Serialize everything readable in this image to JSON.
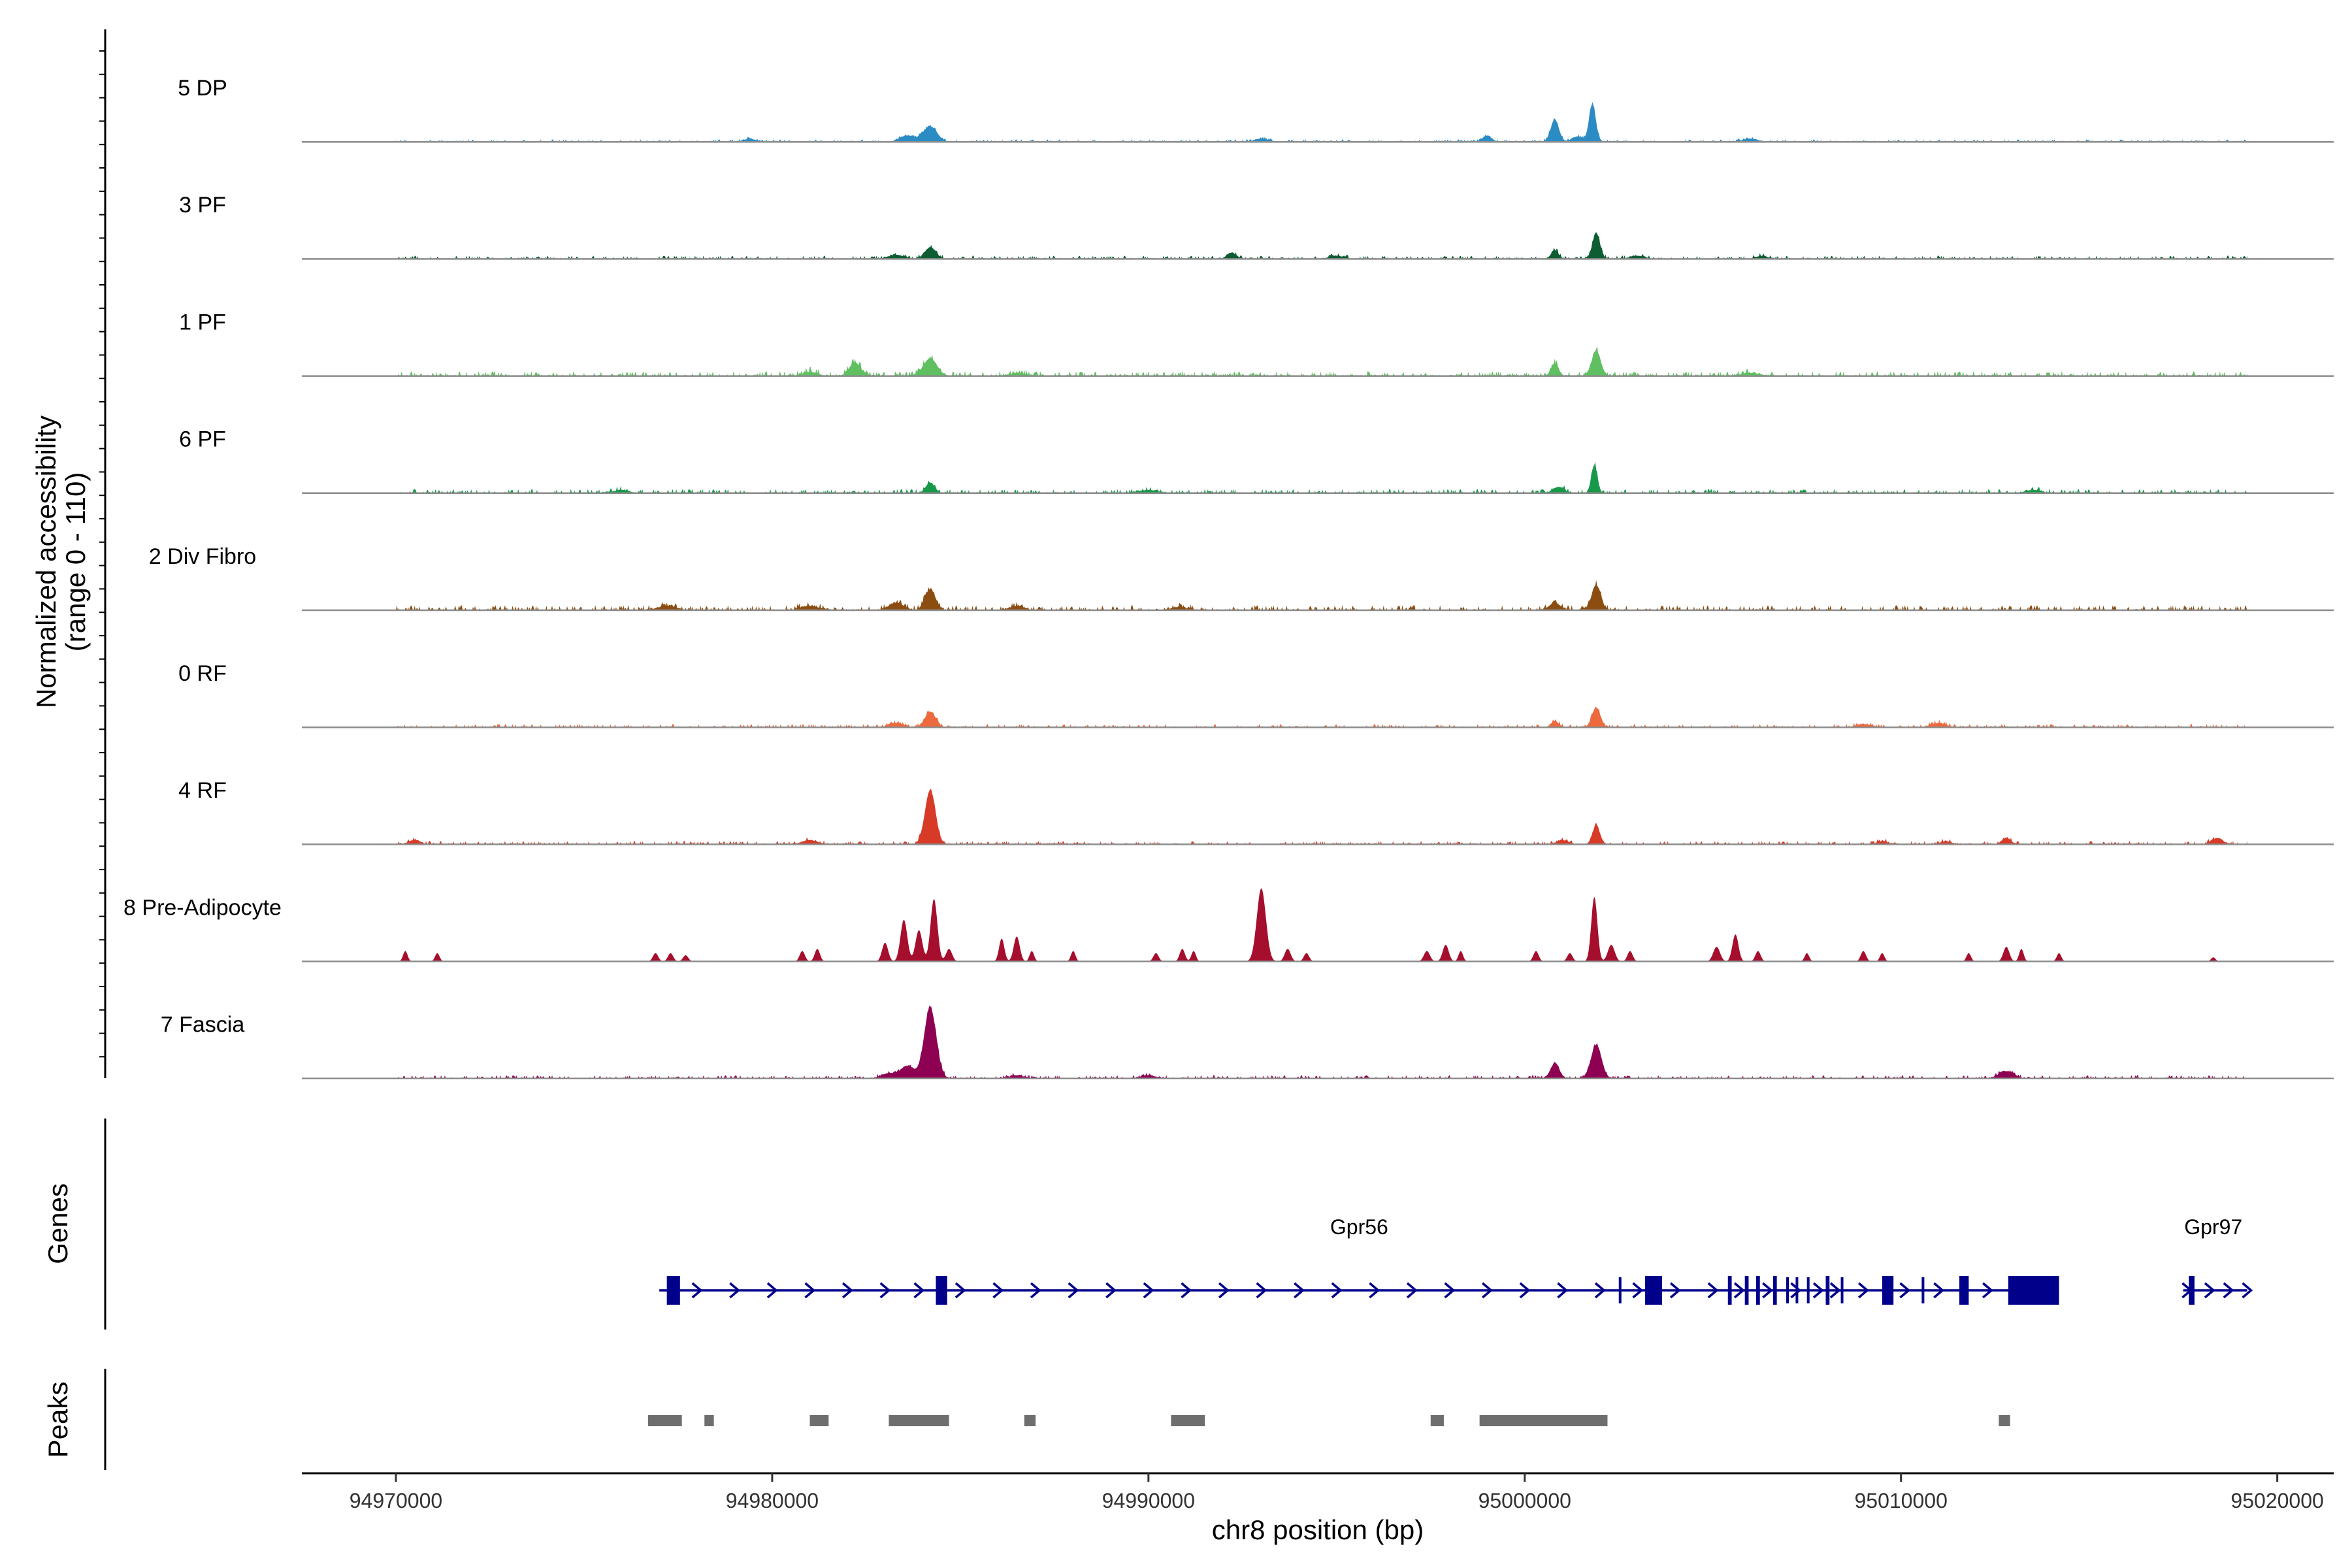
{
  "chart_data": {
    "type": "genome-coverage",
    "x_axis": {
      "label": "chr8 position (bp)",
      "range": [
        94967500,
        95021500
      ],
      "ticks": [
        94970000,
        94980000,
        94990000,
        95000000,
        95010000,
        95020000
      ],
      "tick_labels": [
        "94970000",
        "94980000",
        "94990000",
        "95000000",
        "95010000",
        "95020000"
      ]
    },
    "y_axis": {
      "label_line1": "Normalized accessibility",
      "label_line2": "(range 0 - 110)",
      "range": [
        0,
        110
      ]
    },
    "coverage_extent": [
      94970000,
      95019200
    ],
    "tracks": [
      {
        "name": "5 DP",
        "color": "#2b8cc4",
        "baseline": 1.5,
        "peaks": [
          [
            94984200,
            15,
            180
          ],
          [
            94983600,
            6,
            200
          ],
          [
            94999000,
            6,
            120
          ],
          [
            95000800,
            21,
            110
          ],
          [
            95001800,
            36,
            90
          ],
          [
            95001400,
            5,
            150
          ],
          [
            94979400,
            3,
            150
          ],
          [
            94993000,
            3,
            200
          ],
          [
            95006000,
            3,
            200
          ]
        ]
      },
      {
        "name": "3 PF",
        "color": "#0d5c32",
        "baseline": 2,
        "peaks": [
          [
            94984200,
            11,
            150
          ],
          [
            94983300,
            4,
            200
          ],
          [
            94992200,
            6,
            120
          ],
          [
            95000800,
            8,
            100
          ],
          [
            95001900,
            25,
            100
          ],
          [
            94995000,
            3,
            200
          ],
          [
            95003000,
            3,
            200
          ],
          [
            95006300,
            3,
            150
          ]
        ]
      },
      {
        "name": "1 PF",
        "color": "#5fbf61",
        "baseline": 3,
        "peaks": [
          [
            94982200,
            13,
            150
          ],
          [
            94984200,
            17,
            180
          ],
          [
            94981000,
            4,
            200
          ],
          [
            95000800,
            12,
            100
          ],
          [
            95001900,
            24,
            120
          ],
          [
            94986500,
            3,
            200
          ],
          [
            95006000,
            3,
            250
          ]
        ]
      },
      {
        "name": "6 PF",
        "color": "#189849",
        "baseline": 2.5,
        "peaks": [
          [
            94984200,
            10,
            120
          ],
          [
            95000900,
            6,
            150
          ],
          [
            95001850,
            27,
            80
          ],
          [
            94990000,
            3,
            250
          ],
          [
            95013500,
            3,
            200
          ],
          [
            94976000,
            3,
            200
          ]
        ]
      },
      {
        "name": "2 Div Fibro",
        "color": "#8b4d10",
        "baseline": 3,
        "peaks": [
          [
            94984200,
            20,
            140
          ],
          [
            94983300,
            7,
            200
          ],
          [
            95000800,
            7,
            150
          ],
          [
            95001900,
            24,
            120
          ],
          [
            94977200,
            4,
            250
          ],
          [
            94981000,
            4,
            250
          ],
          [
            94986500,
            4,
            200
          ],
          [
            94990800,
            3,
            200
          ]
        ]
      },
      {
        "name": "0 RF",
        "color": "#ec6a3d",
        "baseline": 2,
        "peaks": [
          [
            94984200,
            15,
            140
          ],
          [
            94983300,
            4,
            200
          ],
          [
            95000800,
            6,
            100
          ],
          [
            95001900,
            19,
            110
          ],
          [
            95011000,
            4,
            200
          ],
          [
            95009000,
            3,
            200
          ]
        ]
      },
      {
        "name": "4 RF",
        "color": "#d73a27",
        "baseline": 2,
        "peaks": [
          [
            94984200,
            52,
            140
          ],
          [
            95001900,
            18,
            100
          ],
          [
            95001000,
            4,
            150
          ],
          [
            95012800,
            6,
            120
          ],
          [
            95018400,
            6,
            150
          ],
          [
            94970500,
            4,
            150
          ],
          [
            94981000,
            4,
            200
          ],
          [
            95009500,
            3,
            150
          ],
          [
            95011200,
            3,
            150
          ]
        ]
      },
      {
        "name": "8 Pre-Adipocyte",
        "color": "#a50f2d",
        "baseline": 0,
        "peaks": [
          [
            94970250,
            10,
            60
          ],
          [
            94971100,
            8,
            60
          ],
          [
            94976900,
            8,
            70
          ],
          [
            94977300,
            8,
            70
          ],
          [
            94977700,
            6,
            70
          ],
          [
            94980800,
            10,
            70
          ],
          [
            94981200,
            12,
            70
          ],
          [
            94983000,
            18,
            80
          ],
          [
            94983500,
            40,
            90
          ],
          [
            94983900,
            30,
            90
          ],
          [
            94984300,
            60,
            90
          ],
          [
            94984700,
            12,
            80
          ],
          [
            94986100,
            22,
            70
          ],
          [
            94986500,
            24,
            80
          ],
          [
            94986900,
            10,
            60
          ],
          [
            94988000,
            10,
            60
          ],
          [
            94990200,
            8,
            70
          ],
          [
            94990900,
            12,
            70
          ],
          [
            94991200,
            10,
            60
          ],
          [
            94993000,
            70,
            120
          ],
          [
            94993700,
            12,
            80
          ],
          [
            94994200,
            8,
            70
          ],
          [
            94997400,
            10,
            80
          ],
          [
            94997900,
            16,
            80
          ],
          [
            94998300,
            10,
            60
          ],
          [
            95000300,
            10,
            70
          ],
          [
            95001200,
            8,
            70
          ],
          [
            95001850,
            62,
            80
          ],
          [
            95002300,
            16,
            90
          ],
          [
            95002800,
            10,
            70
          ],
          [
            95005100,
            14,
            90
          ],
          [
            95005600,
            26,
            80
          ],
          [
            95006200,
            10,
            70
          ],
          [
            95007500,
            8,
            60
          ],
          [
            95009000,
            10,
            70
          ],
          [
            95009500,
            8,
            60
          ],
          [
            95011800,
            8,
            60
          ],
          [
            95012800,
            14,
            80
          ],
          [
            95013200,
            12,
            60
          ],
          [
            95014200,
            8,
            60
          ],
          [
            95018300,
            4,
            60
          ]
        ]
      },
      {
        "name": "7 Fascia",
        "color": "#8e0152",
        "baseline": 2,
        "peaks": [
          [
            94984200,
            68,
            160
          ],
          [
            94983600,
            12,
            180
          ],
          [
            94983100,
            5,
            200
          ],
          [
            95000800,
            14,
            120
          ],
          [
            95001900,
            32,
            140
          ],
          [
            95012800,
            7,
            200
          ],
          [
            94986500,
            3,
            200
          ],
          [
            94990000,
            3,
            200
          ]
        ]
      }
    ],
    "genes": [
      {
        "name": "Gpr56",
        "strand": "+",
        "start": 94977000,
        "end": 95014200,
        "label_x": 94995600,
        "exons": [
          [
            94977200,
            94977550,
            "tall"
          ],
          [
            94984350,
            94984650,
            "tall"
          ],
          [
            95002500,
            95002570,
            "thin"
          ],
          [
            95003200,
            95003650,
            "tall"
          ],
          [
            95005400,
            95005500,
            "tall"
          ],
          [
            95005850,
            95005950,
            "tall"
          ],
          [
            95006150,
            95006250,
            "tall"
          ],
          [
            95006600,
            95006700,
            "tall"
          ],
          [
            95006950,
            95007000,
            "thin"
          ],
          [
            95007200,
            95007250,
            "thin"
          ],
          [
            95007500,
            95007550,
            "thin"
          ],
          [
            95008000,
            95008100,
            "tall"
          ],
          [
            95008400,
            95008450,
            "thin"
          ],
          [
            95009500,
            95009800,
            "tall"
          ],
          [
            95010550,
            95010620,
            "thin"
          ],
          [
            95011550,
            95011800,
            "tall"
          ],
          [
            95012850,
            95014200,
            "tall"
          ]
        ],
        "chevrons": [
          94978000,
          94979000,
          94980000,
          94981000,
          94982000,
          94983000,
          94983900,
          94985000,
          94986000,
          94987000,
          94988000,
          94989000,
          94990000,
          94991000,
          94992000,
          94993000,
          94994000,
          94995000,
          94996000,
          94997000,
          94998000,
          94999000,
          95000000,
          95001000,
          95002000,
          95003000,
          95004000,
          95005000,
          95005700,
          95006450,
          95007200,
          95007800,
          95008250,
          95009000,
          95010100,
          95011000,
          95012300
        ]
      },
      {
        "name": "Gpr97",
        "strand": "+",
        "start": 95017500,
        "end": 95019200,
        "label_x": 95018300,
        "exons": [
          [
            95017650,
            95017800,
            "tall"
          ]
        ],
        "chevrons": [
          95017600,
          95018200,
          95018700,
          95019200
        ]
      }
    ],
    "peaks_track": [
      [
        94976700,
        94977600
      ],
      [
        94978200,
        94978450
      ],
      [
        94981000,
        94981500
      ],
      [
        94983100,
        94984700
      ],
      [
        94986700,
        94987000
      ],
      [
        94990600,
        94991500
      ],
      [
        94997500,
        94997850
      ],
      [
        94998800,
        95002200
      ],
      [
        95012600,
        95012900
      ]
    ],
    "panel_titles": {
      "genes": "Genes",
      "peaks": "Peaks"
    }
  }
}
